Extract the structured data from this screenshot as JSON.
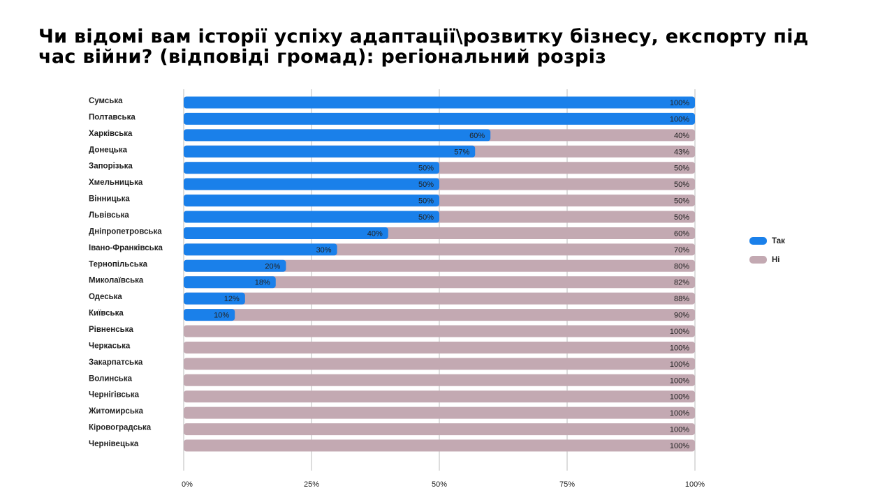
{
  "chart_data": {
    "type": "bar",
    "orientation": "horizontal",
    "stacked": true,
    "title": "Чи відомі вам історії успіху адаптації\\розвитку бізнесу, експорту під час війни? (відповіді громад): регіональний розріз",
    "categories": [
      "Сумська",
      "Полтавська",
      "Харківська",
      "Донецька",
      "Запорізька",
      "Хмельницька",
      "Вінницька",
      "Львівська",
      "Дніпропетровська",
      "Івано-Франківська",
      "Тернопільська",
      "Миколаївська",
      "Одеська",
      "Київська",
      "Рівненська",
      "Черкаська",
      "Закарпатська",
      "Волинська",
      "Чернігівська",
      "Житомирська",
      "Кіровоградська",
      "Чернівецька"
    ],
    "series": [
      {
        "name": "Так",
        "color": "#1a80ea",
        "values": [
          100,
          100,
          60,
          57,
          50,
          50,
          50,
          50,
          40,
          30,
          20,
          18,
          12,
          10,
          0,
          0,
          0,
          0,
          0,
          0,
          0,
          0
        ]
      },
      {
        "name": "Ні",
        "color": "#c3a9b2",
        "values": [
          0,
          0,
          40,
          43,
          50,
          50,
          50,
          50,
          60,
          70,
          80,
          82,
          88,
          90,
          100,
          100,
          100,
          100,
          100,
          100,
          100,
          100
        ]
      }
    ],
    "xlim": [
      0,
      100
    ],
    "xticks": [
      "0%",
      "25%",
      "50%",
      "75%",
      "100%"
    ],
    "grid": true,
    "legend_position": "right"
  }
}
